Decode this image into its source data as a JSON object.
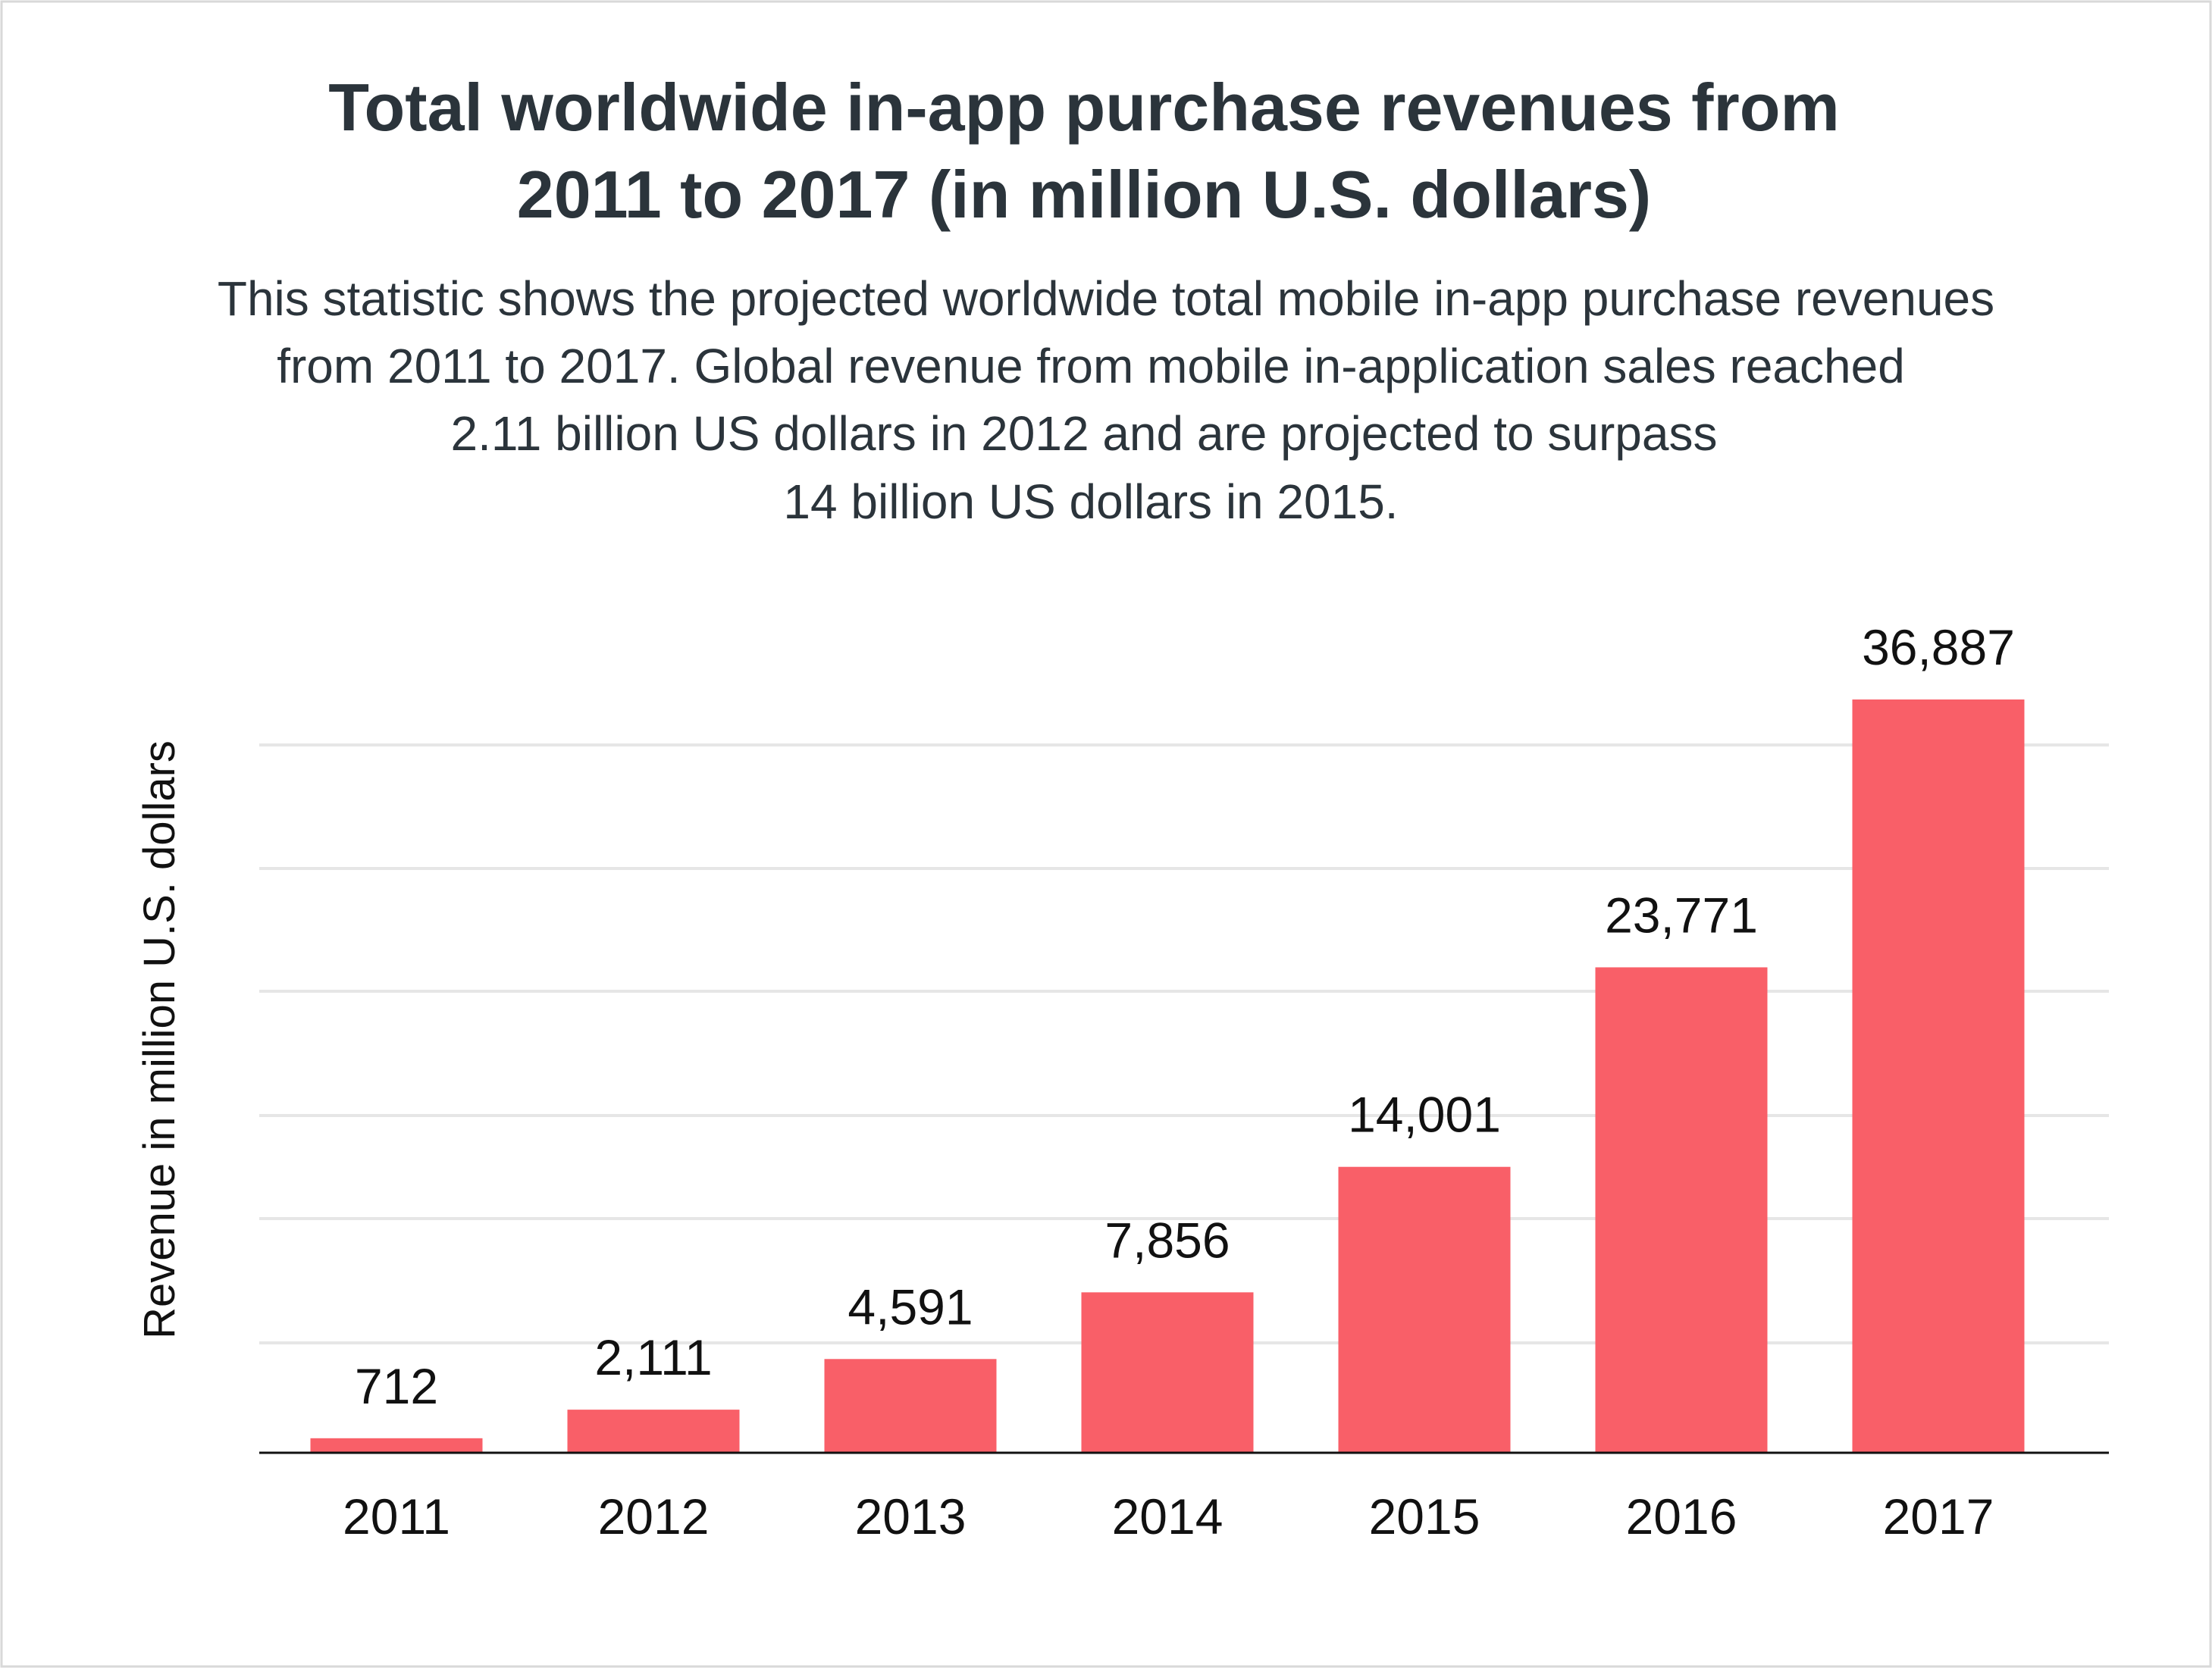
{
  "chart_data": {
    "type": "bar",
    "title": "Total worldwide in-app purchase revenues from 2011 to 2017 (in million U.S. dollars)",
    "title_lines": [
      "Total worldwide in-app purchase revenues from",
      "2011 to 2017 (in million U.S. dollars)"
    ],
    "subtitle_lines": [
      "This statistic shows the projected worldwide total mobile in-app purchase revenues",
      "from 2011 to 2017. Global revenue from mobile in-application sales reached",
      "2.11 billion US dollars in 2012 and are projected to surpass",
      "14 billion US dollars in 2015."
    ],
    "xlabel": "",
    "ylabel": "Revenue in million U.S. dollars",
    "categories": [
      "2011",
      "2012",
      "2013",
      "2014",
      "2015",
      "2016",
      "2017"
    ],
    "values": [
      712,
      2111,
      4591,
      7856,
      14001,
      23771,
      36887
    ],
    "value_labels": [
      "712",
      "2,111",
      "4,591",
      "7,856",
      "14,001",
      "23,771",
      "36,887"
    ],
    "ylim": [
      0,
      36887
    ],
    "grid": true,
    "y_tick_labels_shown": false,
    "bar_color": "#F95F68"
  }
}
